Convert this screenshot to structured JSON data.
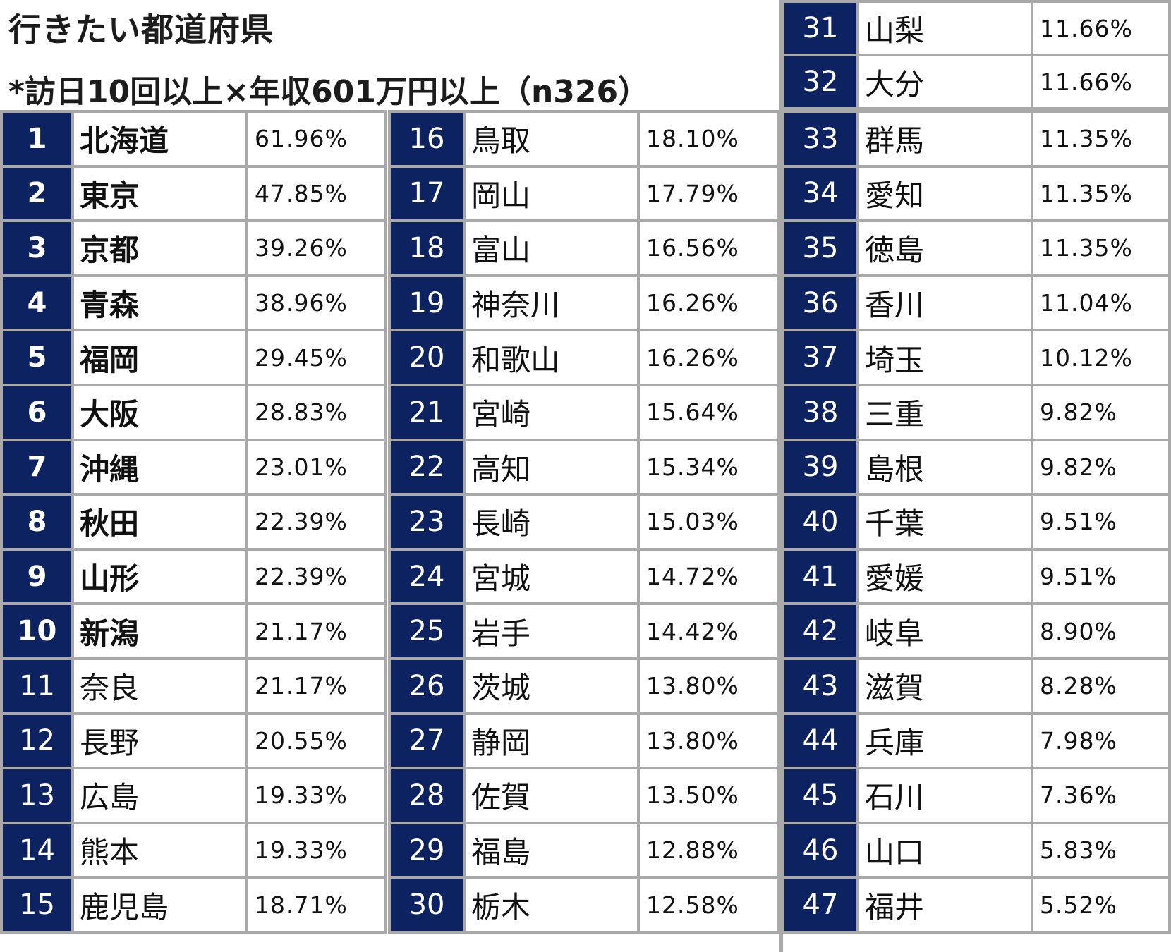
{
  "title": "行きたい都道府県",
  "subtitle": "*訪日10回以上×年収601万円以上（n326）",
  "columns": [
    {
      "rows": [
        {
          "rank": "1",
          "name": "北海道",
          "pct": "61.96%",
          "bold": true
        },
        {
          "rank": "2",
          "name": "東京",
          "pct": "47.85%",
          "bold": true
        },
        {
          "rank": "3",
          "name": "京都",
          "pct": "39.26%",
          "bold": true
        },
        {
          "rank": "4",
          "name": "青森",
          "pct": "38.96%",
          "bold": true
        },
        {
          "rank": "5",
          "name": "福岡",
          "pct": "29.45%",
          "bold": true
        },
        {
          "rank": "6",
          "name": "大阪",
          "pct": "28.83%",
          "bold": true
        },
        {
          "rank": "7",
          "name": "沖縄",
          "pct": "23.01%",
          "bold": true
        },
        {
          "rank": "8",
          "name": "秋田",
          "pct": "22.39%",
          "bold": true
        },
        {
          "rank": "9",
          "name": "山形",
          "pct": "22.39%",
          "bold": true
        },
        {
          "rank": "10",
          "name": "新潟",
          "pct": "21.17%",
          "bold": true
        },
        {
          "rank": "11",
          "name": "奈良",
          "pct": "21.17%",
          "bold": false
        },
        {
          "rank": "12",
          "name": "長野",
          "pct": "20.55%",
          "bold": false
        },
        {
          "rank": "13",
          "name": "広島",
          "pct": "19.33%",
          "bold": false
        },
        {
          "rank": "14",
          "name": "熊本",
          "pct": "19.33%",
          "bold": false
        },
        {
          "rank": "15",
          "name": "鹿児島",
          "pct": "18.71%",
          "bold": false
        }
      ]
    },
    {
      "rows": [
        {
          "rank": "16",
          "name": "鳥取",
          "pct": "18.10%"
        },
        {
          "rank": "17",
          "name": "岡山",
          "pct": "17.79%"
        },
        {
          "rank": "18",
          "name": "富山",
          "pct": "16.56%"
        },
        {
          "rank": "19",
          "name": "神奈川",
          "pct": "16.26%"
        },
        {
          "rank": "20",
          "name": "和歌山",
          "pct": "16.26%"
        },
        {
          "rank": "21",
          "name": "宮崎",
          "pct": "15.64%"
        },
        {
          "rank": "22",
          "name": "高知",
          "pct": "15.34%"
        },
        {
          "rank": "23",
          "name": "長崎",
          "pct": "15.03%"
        },
        {
          "rank": "24",
          "name": "宮城",
          "pct": "14.72%"
        },
        {
          "rank": "25",
          "name": "岩手",
          "pct": "14.42%"
        },
        {
          "rank": "26",
          "name": "茨城",
          "pct": "13.80%"
        },
        {
          "rank": "27",
          "name": "静岡",
          "pct": "13.80%"
        },
        {
          "rank": "28",
          "name": "佐賀",
          "pct": "13.50%"
        },
        {
          "rank": "29",
          "name": "福島",
          "pct": "12.88%"
        },
        {
          "rank": "30",
          "name": "栃木",
          "pct": "12.58%"
        }
      ]
    },
    {
      "top_rows": [
        {
          "rank": "31",
          "name": "山梨",
          "pct": "11.66%"
        },
        {
          "rank": "32",
          "name": "大分",
          "pct": "11.66%"
        }
      ],
      "rows": [
        {
          "rank": "33",
          "name": "群馬",
          "pct": "11.35%"
        },
        {
          "rank": "34",
          "name": "愛知",
          "pct": "11.35%"
        },
        {
          "rank": "35",
          "name": "徳島",
          "pct": "11.35%"
        },
        {
          "rank": "36",
          "name": "香川",
          "pct": "11.04%"
        },
        {
          "rank": "37",
          "name": "埼玉",
          "pct": "10.12%"
        },
        {
          "rank": "38",
          "name": "三重",
          "pct": "9.82%"
        },
        {
          "rank": "39",
          "name": "島根",
          "pct": "9.82%"
        },
        {
          "rank": "40",
          "name": "千葉",
          "pct": "9.51%"
        },
        {
          "rank": "41",
          "name": "愛媛",
          "pct": "9.51%"
        },
        {
          "rank": "42",
          "name": "岐阜",
          "pct": "8.90%"
        },
        {
          "rank": "43",
          "name": "滋賀",
          "pct": "8.28%"
        },
        {
          "rank": "44",
          "name": "兵庫",
          "pct": "7.98%"
        },
        {
          "rank": "45",
          "name": "石川",
          "pct": "7.36%"
        },
        {
          "rank": "46",
          "name": "山口",
          "pct": "5.83%"
        },
        {
          "rank": "47",
          "name": "福井",
          "pct": "5.52%"
        }
      ]
    }
  ],
  "colors": {
    "rank_bg": "#0d2260",
    "rank_text": "#ffffff",
    "grid": "#a9a9a9"
  }
}
